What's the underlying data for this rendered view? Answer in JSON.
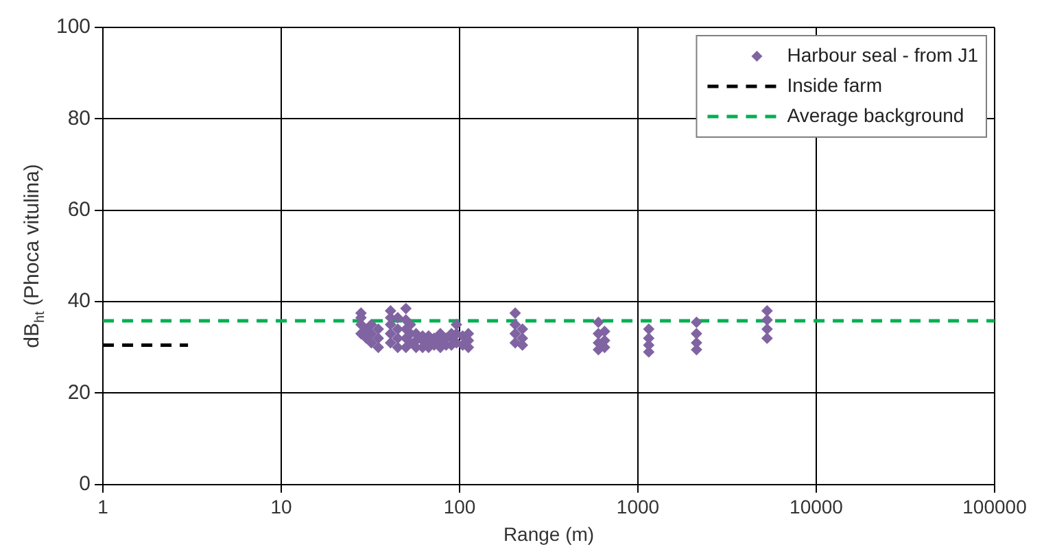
{
  "chart_data": {
    "type": "scatter",
    "xlabel": "Range (m)",
    "ylabel": "dB$_{ht}$ (Phoca vitulina)",
    "log": "x",
    "xlim": [
      1,
      100000
    ],
    "xticks": [
      1,
      10,
      100,
      1000,
      10000,
      100000
    ],
    "ylim": [
      0,
      100
    ],
    "yticks": [
      0,
      20,
      40,
      60,
      80,
      100
    ],
    "grid": true,
    "legend": "top right",
    "series": [
      {
        "name": "Harbour seal - from J1",
        "marker": "diamond",
        "color": "#8064a2",
        "x": [
          28,
          28,
          28,
          28,
          30,
          30,
          32,
          32,
          32,
          35,
          35,
          35,
          41,
          41,
          41,
          41,
          41,
          45,
          45,
          45,
          45,
          50,
          50,
          50,
          50,
          50,
          53,
          53,
          53,
          57,
          57,
          57,
          62,
          62,
          62,
          67,
          67,
          67,
          72,
          72,
          78,
          78,
          78,
          84,
          84,
          90,
          90,
          90,
          96,
          96,
          96,
          104,
          104,
          112,
          112,
          112,
          205,
          205,
          205,
          205,
          225,
          225,
          225,
          600,
          600,
          600,
          600,
          650,
          650,
          650,
          1150,
          1150,
          1150,
          1150,
          2130,
          2130,
          2130,
          2130,
          5300,
          5300,
          5300,
          5300
        ],
        "values": [
          33,
          35,
          36.5,
          37.5,
          32,
          34,
          31,
          33,
          35,
          30,
          32,
          34,
          31,
          33,
          35,
          36.5,
          38,
          30,
          32,
          34,
          36.5,
          30,
          32,
          34,
          36,
          38.5,
          31,
          33,
          35,
          30,
          31.5,
          33,
          30,
          31.5,
          32.5,
          30,
          31,
          32.5,
          30.5,
          32,
          30,
          31.5,
          33,
          30.5,
          32,
          30.5,
          32,
          33,
          31,
          33,
          35,
          30.5,
          32.5,
          30,
          31.5,
          33,
          31,
          33,
          35,
          37.5,
          30.5,
          32,
          34,
          29.5,
          31,
          33,
          35.5,
          30,
          31.5,
          33.5,
          29,
          30.5,
          32,
          34,
          29.5,
          31,
          33,
          35.5,
          32,
          34,
          36,
          38
        ]
      },
      {
        "name": "Inside farm",
        "type": "line",
        "line_style": "dashed",
        "color": "#000000",
        "x": [
          1,
          3
        ],
        "values": [
          30.5,
          30.5
        ]
      },
      {
        "name": "Average background",
        "type": "line",
        "line_style": "dashed",
        "color": "#00b050",
        "x": [
          1,
          100000
        ],
        "values": [
          35.8,
          35.8
        ]
      }
    ]
  }
}
